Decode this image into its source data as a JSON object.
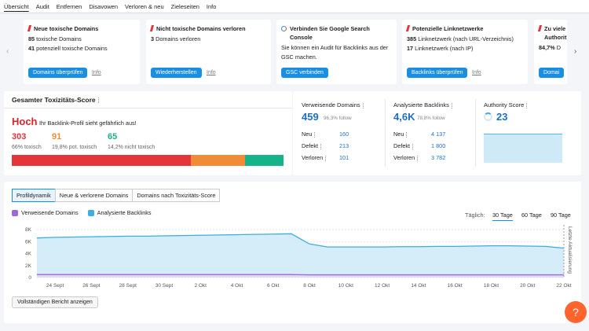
{
  "nav": {
    "tabs": [
      "Übersicht",
      "Audit",
      "Entfernen",
      "Disavowen",
      "Verloren & neu",
      "Zieleseiten",
      "Info"
    ]
  },
  "cards": [
    {
      "title": "Neue toxische Domains",
      "lines": [
        {
          "num": "85",
          "text": "toxische Domains"
        },
        {
          "num": "41",
          "text": "potenziell toxische Domains"
        }
      ],
      "button": "Domains überprüfen",
      "info": "Info"
    },
    {
      "title": "Nicht toxische Domains verloren",
      "lines": [
        {
          "num": "3",
          "text": "Domains verloren"
        }
      ],
      "button": "Wiederherstellen",
      "info": "Info"
    },
    {
      "title": "Verbinden Sie Google Search Console",
      "lines": [
        {
          "text": "Sie können ein Audit für Backlinks aus der GSC machen."
        }
      ],
      "button": "GSC verbinden"
    },
    {
      "title": "Potenzielle Linknetzwerke",
      "lines": [
        {
          "num": "385",
          "text": "Linknetzwerk (nach URL-Verzeichnis)"
        },
        {
          "num": "17",
          "text": "Linknetzwerk (nach IP)"
        }
      ],
      "button": "Backlinks überprüfen",
      "info": "Info"
    },
    {
      "title": "Zu viele Authorit",
      "lines": [
        {
          "num": "84,7%",
          "text": "D"
        }
      ],
      "button": "Domai"
    }
  ],
  "toxicity": {
    "title": "Gesamter Toxizitäts-Score",
    "level": "Hoch",
    "message": "Ihr Backlink-Profil sieht gefährlich aus!",
    "groups": [
      {
        "count": 303,
        "label": "66% toxisch",
        "color": "#e5343a"
      },
      {
        "count": 91,
        "label": "19,8% pot. toxisch",
        "color": "#f08c35"
      },
      {
        "count": 65,
        "label": "14,2% nicht toxisch",
        "color": "#16b28a"
      }
    ]
  },
  "stats": [
    {
      "title": "Verweisende Domains",
      "value": "459",
      "follow": "96,3% follow",
      "rows": [
        {
          "label": "Neu",
          "value": "160"
        },
        {
          "label": "Defekt",
          "value": "213"
        },
        {
          "label": "Verloren",
          "value": "101"
        }
      ]
    },
    {
      "title": "Analysierte Backlinks",
      "value": "4,6K",
      "follow": "78,8% follow",
      "rows": [
        {
          "label": "Neu",
          "value": "4 137"
        },
        {
          "label": "Defekt",
          "value": "1 800"
        },
        {
          "label": "Verloren",
          "value": "3 782"
        }
      ]
    }
  ],
  "authority": {
    "title": "Authority Score",
    "value": "23"
  },
  "report": {
    "tabs": [
      "Profildynamik",
      "Neue & verlorene Domains",
      "Domains nach Toxizitäts-Score"
    ],
    "period_label": "Täglich:",
    "periods": [
      "30 Tage",
      "60 Tage",
      "90 Tage"
    ],
    "update_label": "Letzte Aktualisierung",
    "button": "Vollständigen Bericht anzeigen",
    "help": "?"
  },
  "chart_data": {
    "type": "area",
    "categories": [
      null,
      "24 Sept",
      null,
      "26 Sept",
      null,
      "28 Sept",
      null,
      "30 Sept",
      null,
      "2 Okt",
      null,
      "4 Okt",
      null,
      "6 Okt",
      null,
      "8 Okt",
      null,
      "10 Okt",
      null,
      "12 Okt",
      null,
      "14 Okt",
      null,
      "16 Okt",
      null,
      "18 Okt",
      null,
      "20 Okt",
      null,
      "22 Okt"
    ],
    "series": [
      {
        "name": "Analysierte Backlinks",
        "color": "#3aaee0",
        "values": [
          6600,
          6700,
          6750,
          6800,
          6850,
          6900,
          6900,
          6950,
          7000,
          7050,
          7100,
          7150,
          7200,
          7250,
          7300,
          5600,
          5100,
          5100,
          5100,
          5100,
          5150,
          5150,
          5200,
          5200,
          5250,
          5300,
          5300,
          5250,
          5200,
          4900
        ]
      },
      {
        "name": "Verweisende Domains",
        "color": "#a068d6",
        "values": [
          500,
          500,
          500,
          500,
          500,
          500,
          500,
          500,
          500,
          500,
          500,
          500,
          500,
          500,
          500,
          450,
          450,
          450,
          450,
          450,
          450,
          450,
          450,
          450,
          450,
          450,
          450,
          450,
          450,
          450
        ]
      }
    ],
    "ylim": [
      0,
      8000
    ],
    "yticks": [
      0,
      {
        "value": 2000,
        "label": "2K"
      },
      {
        "value": 4000,
        "label": "4K"
      },
      {
        "value": 6000,
        "label": "6K"
      },
      {
        "value": 8000,
        "label": "8K"
      }
    ],
    "grid": true
  }
}
